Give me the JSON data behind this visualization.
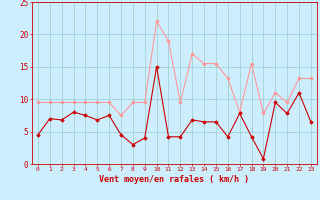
{
  "x": [
    0,
    1,
    2,
    3,
    4,
    5,
    6,
    7,
    8,
    9,
    10,
    11,
    12,
    13,
    14,
    15,
    16,
    17,
    18,
    19,
    20,
    21,
    22,
    23
  ],
  "vent_moyen": [
    4.5,
    7.0,
    6.8,
    8.0,
    7.5,
    6.8,
    7.5,
    4.5,
    3.0,
    4.0,
    15.0,
    4.2,
    4.2,
    6.8,
    6.5,
    6.5,
    4.2,
    7.8,
    4.2,
    0.8,
    9.5,
    7.8,
    11.0,
    6.5
  ],
  "vent_rafales": [
    9.5,
    9.5,
    9.5,
    9.5,
    9.5,
    9.5,
    9.5,
    7.5,
    9.5,
    9.5,
    22.0,
    19.0,
    9.5,
    17.0,
    15.5,
    15.5,
    13.2,
    8.0,
    15.5,
    7.8,
    11.0,
    9.5,
    13.2,
    13.2
  ],
  "xlabel": "Vent moyen/en rafales ( km/h )",
  "ylim": [
    0,
    25
  ],
  "yticks": [
    0,
    5,
    10,
    15,
    20,
    25
  ],
  "xticks": [
    0,
    1,
    2,
    3,
    4,
    5,
    6,
    7,
    8,
    9,
    10,
    11,
    12,
    13,
    14,
    15,
    16,
    17,
    18,
    19,
    20,
    21,
    22,
    23
  ],
  "color_moyen": "#cc0000",
  "color_rafales": "#ff9999",
  "bg_color": "#cceeff",
  "grid_color": "#99cccc",
  "axis_color": "#cc0000",
  "tick_color": "#cc0000",
  "xlabel_color": "#cc0000",
  "marker": "D",
  "marker_size": 1.8,
  "linewidth": 0.8
}
